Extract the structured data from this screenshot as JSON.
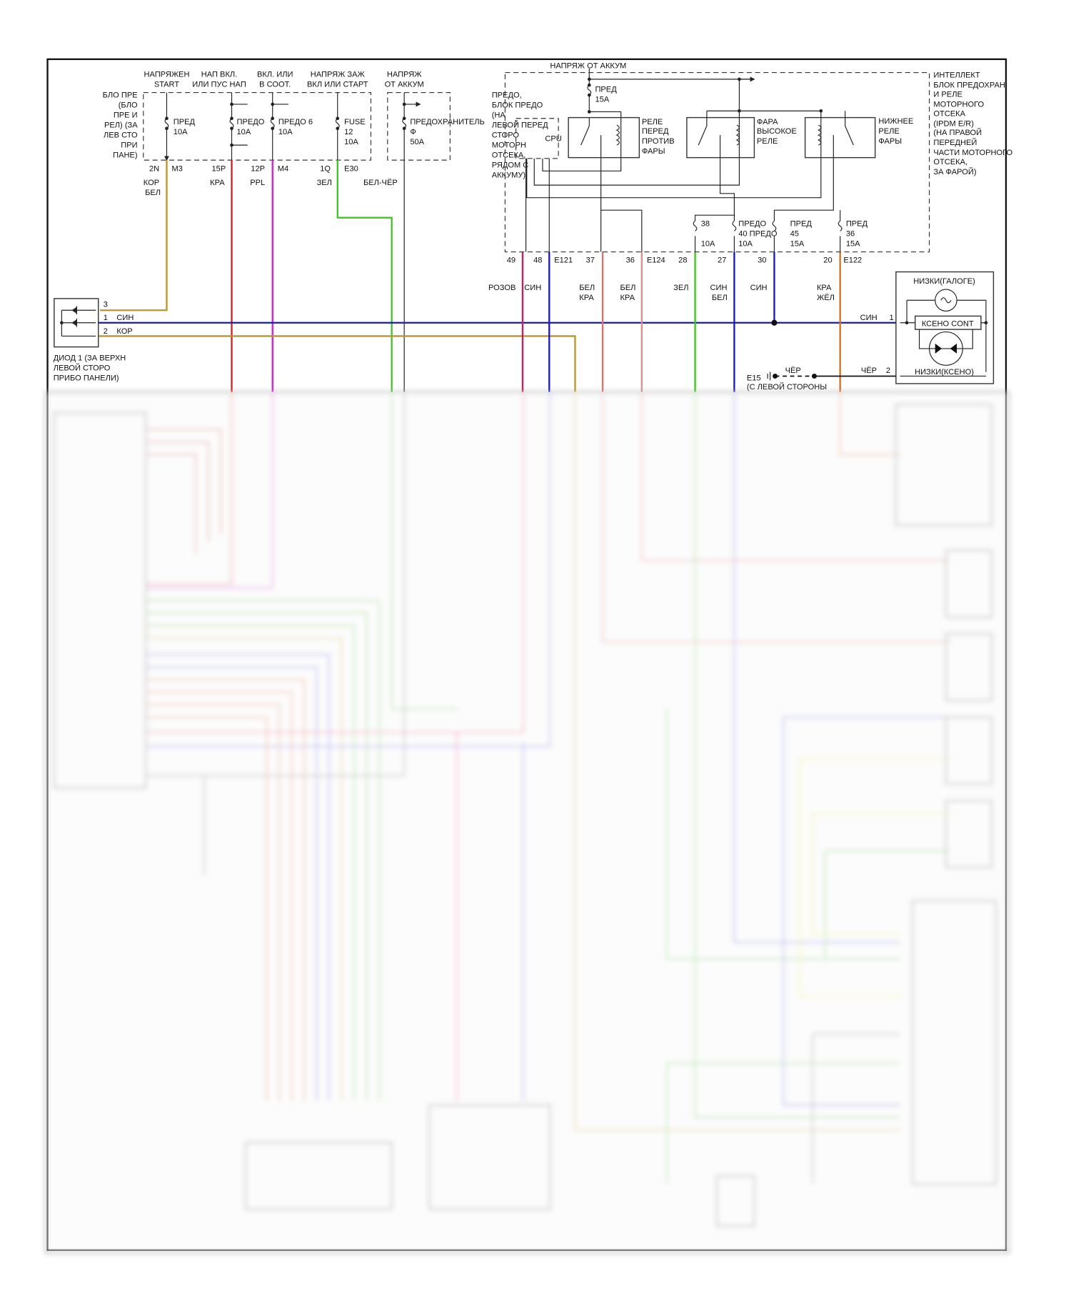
{
  "left_fuse_block": {
    "label": [
      "БЛО ПРЕ",
      "(БЛО",
      "ПРЕ И",
      "РЕЛ) (ЗА",
      "ЛЕВ СТО",
      "ПРИ",
      "ПАНЕ)"
    ],
    "supplies": [
      [
        "НАПРЯЖЕН",
        "START"
      ],
      [
        "НАП ВКЛ.",
        "ИЛИ ПУС НАП"
      ],
      [
        "ВКЛ. ИЛИ",
        "В СООТ."
      ],
      [
        "НАПРЯЖ ЗАЖ",
        "ВКЛ ИЛИ СТАРТ"
      ],
      [
        "НАПРЯЖ",
        "ОТ АККУМ"
      ]
    ],
    "fuses": [
      [
        "ПРЕД",
        "10A"
      ],
      [
        "ПРЕДО",
        "10A"
      ],
      [
        "ПРЕДО 6",
        "10A"
      ],
      [
        "FUSE",
        "12",
        "10A"
      ],
      [
        "ПРЕДОХРАНИТЕЛЬ",
        "Ф",
        "50A"
      ]
    ],
    "connectors": [
      "2N",
      "M3",
      "15P",
      "12P",
      "M4",
      "1Q",
      "E30"
    ],
    "wire_colors": [
      [
        "КОР",
        "БЕЛ"
      ],
      [
        "КРА"
      ],
      [
        "PPL"
      ],
      [
        "ЗЕЛ"
      ],
      [
        "БЕЛ-ЧЁР"
      ]
    ]
  },
  "engine_fuse_block": {
    "label": [
      "ПРЕДО,",
      "БЛОК ПРЕДО",
      "(НА",
      "ЛЕВОЙ ПЕРЕД",
      "СТОРО",
      "МОТОРН",
      "ОТСЕКА,",
      "РЯДОМ С",
      "АККУМУ)"
    ]
  },
  "ipdm": {
    "supply": "НАПРЯЖ ОТ АККУМ",
    "label": [
      "ИНТЕЛЛЕКТ",
      "БЛОК ПРЕДОХРАН",
      "И РЕЛЕ",
      "МОТОРНОГО",
      "ОТСЕКА",
      "(IPDM E/R)",
      "(НА ПРАВОЙ",
      "ПЕРЕДНЕЙ",
      "ЧАСТИ МОТОРНОГО",
      "ОТСЕКА,",
      "ЗА ФАРОЙ)"
    ],
    "main_fuse": [
      "ПРЕД",
      "15A"
    ],
    "cpu": "CPU",
    "relays": [
      [
        "РЕЛЕ",
        "ПЕРЕД",
        "ПРОТИВ",
        "ФАРЫ"
      ],
      [
        "ФАРА",
        "ВЫСОКОЕ",
        "РЕЛЕ"
      ],
      [
        "НИЖНЕЕ",
        "РЕЛЕ",
        "ФАРЫ"
      ]
    ],
    "fuses": [
      [
        "38",
        "10A"
      ],
      [
        "ПРЕДО",
        "40 ПРЕДО",
        "10A"
      ],
      [
        "ПРЕД",
        "45",
        "15A"
      ],
      [
        "ПРЕД",
        "36",
        "15A"
      ]
    ],
    "pins": [
      "49",
      "48",
      "E121",
      "37",
      "36",
      "E124",
      "28",
      "27",
      "30",
      "20",
      "E122"
    ],
    "wire_colors": [
      [
        "РОЗОВ"
      ],
      [
        "СИН"
      ],
      [
        "БЕЛ",
        "КРА"
      ],
      [
        "БЕЛ",
        "КРА"
      ],
      [
        "ЗЕЛ"
      ],
      [
        "СИН",
        "БЕЛ"
      ],
      [
        "СИН"
      ],
      [
        "КРА",
        "ЖЁЛ"
      ]
    ]
  },
  "diode": {
    "pins": [
      "3",
      "1",
      "2"
    ],
    "wires": [
      "СИН",
      "КОР"
    ],
    "label": [
      "ДИОД 1 (ЗА ВЕРХН",
      "ЛЕВОЙ СТОРО",
      "ПРИБО ПАНЕЛИ)"
    ]
  },
  "xenon_lamp": {
    "top_label": "НИЗКИ(ГАЛОГЕ)",
    "controller": "КСЕНО CONT",
    "bottom_label": "НИЗКИ(КСЕНО)",
    "pins": [
      "1",
      "2"
    ],
    "wires": [
      "СИН",
      "ЧЁР"
    ]
  },
  "ground": {
    "id": "E15",
    "wire": "ЧЁР",
    "label": "(С ЛЕВОЙ СТОРОНЫ"
  },
  "colors": {
    "tan": "#b8962e",
    "red": "#d42020",
    "magenta": "#d020d0",
    "green": "#3cc81e",
    "gray": "#777777",
    "crimson": "#c81e5a",
    "blue": "#1a1ab4",
    "pink": "#e07878",
    "orange": "#d9701a"
  }
}
